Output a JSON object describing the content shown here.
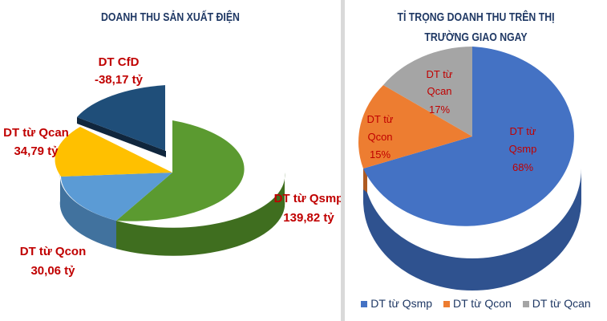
{
  "chart_data": [
    {
      "type": "pie",
      "title": "DOANH THU SẢN XUẤT ĐIỆN",
      "slices": [
        {
          "label": "DT từ Qsmp",
          "value": 139.82,
          "value_label": "139,82 tỷ",
          "color": "#5b9a30"
        },
        {
          "label": "DT từ Qcon",
          "value": 30.06,
          "value_label": "30,06 tỷ",
          "color": "#5b9bd5"
        },
        {
          "label": "DT từ Qcan",
          "value": 34.79,
          "value_label": "34,79 tỷ",
          "color": "#ffc000"
        },
        {
          "label": "DT CfD",
          "value": 38.17,
          "value_label": "-38,17 tỷ",
          "color": "#1f4e79",
          "exploded": true
        }
      ],
      "label_color": "#c00000"
    },
    {
      "type": "pie",
      "title_line1": "TỈ TRỌNG DOANH THU TRÊN THỊ",
      "title_line2": "TRƯỜNG GIAO NGAY",
      "slices": [
        {
          "label_line1": "DT từ",
          "label_line2": "Qsmp",
          "percent": 68,
          "percent_label": "68%",
          "color": "#4472c4"
        },
        {
          "label_line1": "DT từ",
          "label_line2": "Qcon",
          "percent": 15,
          "percent_label": "15%",
          "color": "#ed7d31"
        },
        {
          "label_line1": "DT từ",
          "label_line2": "Qcan",
          "percent": 17,
          "percent_label": "17%",
          "color": "#a5a5a5"
        }
      ],
      "legend": [
        "DT từ Qsmp",
        "DT từ Qcon",
        "DT từ Qcan"
      ],
      "label_color": "#c00000",
      "legend_position": "bottom"
    }
  ]
}
